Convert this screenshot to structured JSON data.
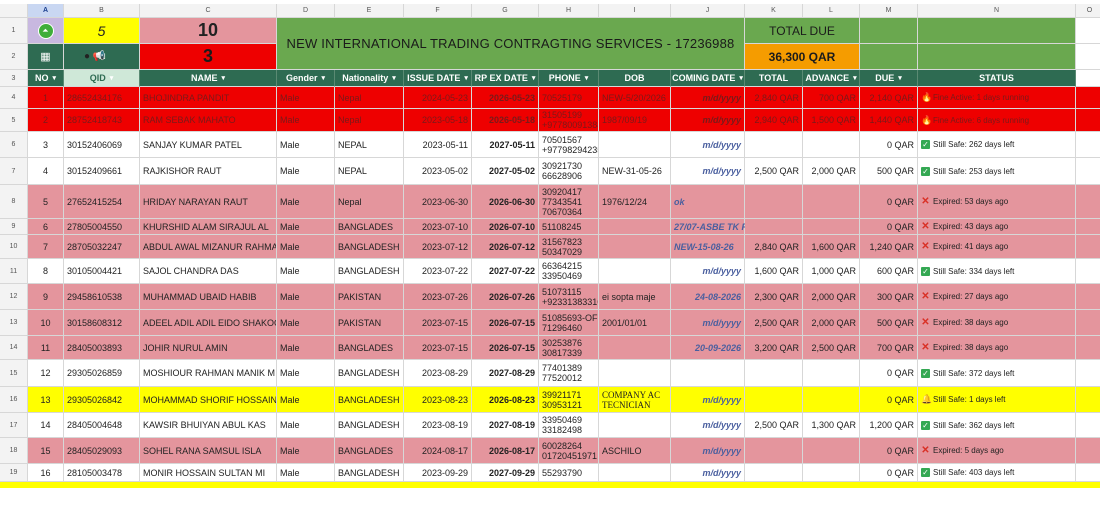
{
  "col_letters": [
    "A",
    "B",
    "C",
    "D",
    "E",
    "F",
    "G",
    "H",
    "I",
    "J",
    "K",
    "L",
    "M",
    "N",
    "O"
  ],
  "summary": {
    "count_active": "5",
    "count_main": "10",
    "count_expired": "3",
    "title": "NEW INTERNATIONAL TRADING CONTRAGTING SERVICES -  17236988",
    "total_due_label": "TOTAL DUE",
    "total_due_value": "36,300 QAR"
  },
  "headers": [
    "NO",
    "QID",
    "NAME",
    "Gender",
    "Nationality",
    "ISSUE DATE",
    "RP EX DATE",
    "PHONE",
    "DOB",
    "COMING DATE",
    "TOTAL",
    "ADVANCE",
    "DUE",
    "STATUS"
  ],
  "rows": [
    {
      "rn": "4",
      "style": "red",
      "no": "1",
      "qid": "28652434176",
      "name": "BHOJINDRA PANDIT",
      "gender": "Male",
      "nat": "Nepal",
      "issue": "2024-05-23",
      "rp": "2026-05-23",
      "phone": [
        "70525179"
      ],
      "dob": "NEW-5/20/2026",
      "coming": "m/d/yyyy",
      "total": "2,840 QAR",
      "adv": "700 QAR",
      "due": "2,140 QAR",
      "status": "Fine Active: 1 days running",
      "icon": "fire"
    },
    {
      "rn": "5",
      "style": "red",
      "no": "2",
      "qid": "28752418743",
      "name": "RAM SEBAK MAHATO",
      "gender": "Male",
      "nat": "Nepal",
      "issue": "2023-05-18",
      "rp": "2026-05-18",
      "phone": [
        "31505199",
        "+97780091384"
      ],
      "dob": "1987/09/19",
      "coming": "m/d/yyyy",
      "total": "2,940 QAR",
      "adv": "1,500 QAR",
      "due": "1,440 QAR",
      "status": "Fine Active: 6 days running",
      "icon": "fire"
    },
    {
      "rn": "6",
      "style": "white",
      "no": "3",
      "qid": "30152406069",
      "name": "SANJAY KUMAR PATEL",
      "gender": "Male",
      "nat": "NEPAL",
      "issue": "2023-05-11",
      "rp": "2027-05-11",
      "phone": [
        "70501567",
        "+97798294235"
      ],
      "dob": "",
      "coming": "m/d/yyyy",
      "total": "",
      "adv": "",
      "due": "0 QAR",
      "status": "Still Safe: 262 days left",
      "icon": "ok"
    },
    {
      "rn": "7",
      "style": "white",
      "no": "4",
      "qid": "30152409661",
      "name": "RAJKISHOR RAUT",
      "gender": "Male",
      "nat": "NEPAL",
      "issue": "2023-05-02",
      "rp": "2027-05-02",
      "phone": [
        "30921730",
        "66628906"
      ],
      "dob": "NEW-31-05-26",
      "coming": "m/d/yyyy",
      "total": "2,500 QAR",
      "adv": "2,000 QAR",
      "due": "500 QAR",
      "status": "Still Safe: 253 days left",
      "icon": "ok"
    },
    {
      "rn": "8",
      "style": "pink",
      "no": "5",
      "qid": "27652415254",
      "name": "HRIDAY NARAYAN RAUT",
      "gender": "Male",
      "nat": "Nepal",
      "issue": "2023-06-30",
      "rp": "2026-06-30",
      "phone": [
        "30920417",
        "77343541",
        "70670364"
      ],
      "dob": "1976/12/24",
      "coming": "ok",
      "total": "",
      "adv": "",
      "due": "0 QAR",
      "status": "Expired: 53 days ago",
      "icon": "x"
    },
    {
      "rn": "9",
      "style": "pink",
      "no": "6",
      "qid": "27805004550",
      "name": "KHURSHID ALAM SIRAJUL AL",
      "gender": "Male",
      "nat": "BANGLADES",
      "issue": "2023-07-10",
      "rp": "2026-07-10",
      "phone": [
        "51108245"
      ],
      "dob": "",
      "coming": "27/07-ASBE TK REASDY HOLE",
      "total": "",
      "adv": "",
      "due": "0 QAR",
      "status": "Expired: 43 days ago",
      "icon": "x"
    },
    {
      "rn": "10",
      "style": "pink",
      "no": "7",
      "qid": "28705032247",
      "name": "ABDUL AWAL MIZANUR RAHMA",
      "gender": "Male",
      "nat": "BANGLADESH",
      "issue": "2023-07-12",
      "rp": "2026-07-12",
      "phone": [
        "31567823",
        "50347029"
      ],
      "dob": "",
      "coming": "NEW-15-08-26",
      "total": "2,840 QAR",
      "adv": "1,600 QAR",
      "due": "1,240 QAR",
      "status": "Expired: 41 days ago",
      "icon": "x"
    },
    {
      "rn": "11",
      "style": "white",
      "no": "8",
      "qid": "30105004421",
      "name": "SAJOL CHANDRA DAS",
      "gender": "Male",
      "nat": "BANGLADESH",
      "issue": "2023-07-22",
      "rp": "2027-07-22",
      "phone": [
        "66364215",
        "33950469"
      ],
      "dob": "",
      "coming": "m/d/yyyy",
      "total": "1,600 QAR",
      "adv": "1,000 QAR",
      "due": "600 QAR",
      "status": "Still Safe: 334 days left",
      "icon": "ok"
    },
    {
      "rn": "12",
      "style": "pink",
      "no": "9",
      "qid": "29458610538",
      "name": "MUHAMMAD UBAID HABIB",
      "gender": "Male",
      "nat": "PAKISTAN",
      "issue": "2023-07-26",
      "rp": "2026-07-26",
      "phone": [
        "51073115",
        "+92331383316"
      ],
      "dob": "ei sopta maje",
      "coming": "24-08-2026",
      "total": "2,300 QAR",
      "adv": "2,000 QAR",
      "due": "300 QAR",
      "status": "Expired: 27 days ago",
      "icon": "x"
    },
    {
      "rn": "13",
      "style": "pink",
      "no": "10",
      "qid": "30158608312",
      "name": "ADEEL ADIL ADIL EIDO SHAKOO",
      "gender": "Male",
      "nat": "PAKISTAN",
      "issue": "2023-07-15",
      "rp": "2026-07-15",
      "phone": [
        "51085693-OFF",
        "71296460"
      ],
      "dob": "2001/01/01",
      "coming": "m/d/yyyy",
      "total": "2,500 QAR",
      "adv": "2,000 QAR",
      "due": "500 QAR",
      "status": "Expired: 38 days ago",
      "icon": "x"
    },
    {
      "rn": "14",
      "style": "pink",
      "no": "11",
      "qid": "28405003893",
      "name": "JOHIR NURUL AMIN",
      "gender": "Male",
      "nat": "BANGLADES",
      "issue": "2023-07-15",
      "rp": "2026-07-15",
      "phone": [
        "30253876",
        "30817339"
      ],
      "dob": "",
      "coming": "20-09-2026",
      "total": "3,200 QAR",
      "adv": "2,500 QAR",
      "due": "700 QAR",
      "status": "Expired: 38 days ago",
      "icon": "x"
    },
    {
      "rn": "15",
      "style": "white",
      "no": "12",
      "qid": "29305026859",
      "name": "MOSHIOUR RAHMAN MANIK M",
      "gender": "Male",
      "nat": "BANGLADESH",
      "issue": "2023-08-29",
      "rp": "2027-08-29",
      "phone": [
        "77401389",
        "77520012"
      ],
      "dob": "",
      "coming": "",
      "total": "",
      "adv": "",
      "due": "0 QAR",
      "status": "Still Safe: 372 days left",
      "icon": "ok"
    },
    {
      "rn": "16",
      "style": "yellow",
      "no": "13",
      "qid": "29305026842",
      "name": "MOHAMMAD SHORIF HOSSAIN",
      "gender": "Male",
      "nat": "BANGLADESH",
      "issue": "2023-08-23",
      "rp": "2026-08-23",
      "phone": [
        "39921171",
        "30953121"
      ],
      "dob": "COMPANY AC TECNICIAN",
      "coming": "m/d/yyyy",
      "total": "",
      "adv": "",
      "due": "0 QAR",
      "status": "Still Safe: 1 days left",
      "icon": "bell"
    },
    {
      "rn": "17",
      "style": "white",
      "no": "14",
      "qid": "28405004648",
      "name": "KAWSIR BHUIYAN ABUL KAS",
      "gender": "Male",
      "nat": "BANGLADESH",
      "issue": "2023-08-19",
      "rp": "2027-08-19",
      "phone": [
        "33950469",
        "33182498"
      ],
      "dob": "",
      "coming": "m/d/yyyy",
      "total": "2,500 QAR",
      "adv": "1,300 QAR",
      "due": "1,200 QAR",
      "status": "Still Safe: 362 days left",
      "icon": "ok"
    },
    {
      "rn": "18",
      "style": "pink",
      "no": "15",
      "qid": "28405029093",
      "name": "SOHEL RANA SAMSUL ISLA",
      "gender": "Male",
      "nat": "BANGLADES",
      "issue": "2024-08-17",
      "rp": "2026-08-17",
      "phone": [
        "60028264",
        "01720451971"
      ],
      "dob": "ASCHILO",
      "coming": "m/d/yyyy",
      "total": "",
      "adv": "",
      "due": "0 QAR",
      "status": "Expired: 5 days ago",
      "icon": "x"
    },
    {
      "rn": "19",
      "style": "white",
      "no": "16",
      "qid": "28105003478",
      "name": "MONIR HOSSAIN SULTAN MI",
      "gender": "Male",
      "nat": "BANGLADESH",
      "issue": "2023-09-29",
      "rp": "2027-09-29",
      "phone": [
        "55293790"
      ],
      "dob": "",
      "coming": "m/d/yyyy",
      "total": "",
      "adv": "",
      "due": "0 QAR",
      "status": "Still Safe: 403 days left",
      "icon": "ok"
    }
  ]
}
